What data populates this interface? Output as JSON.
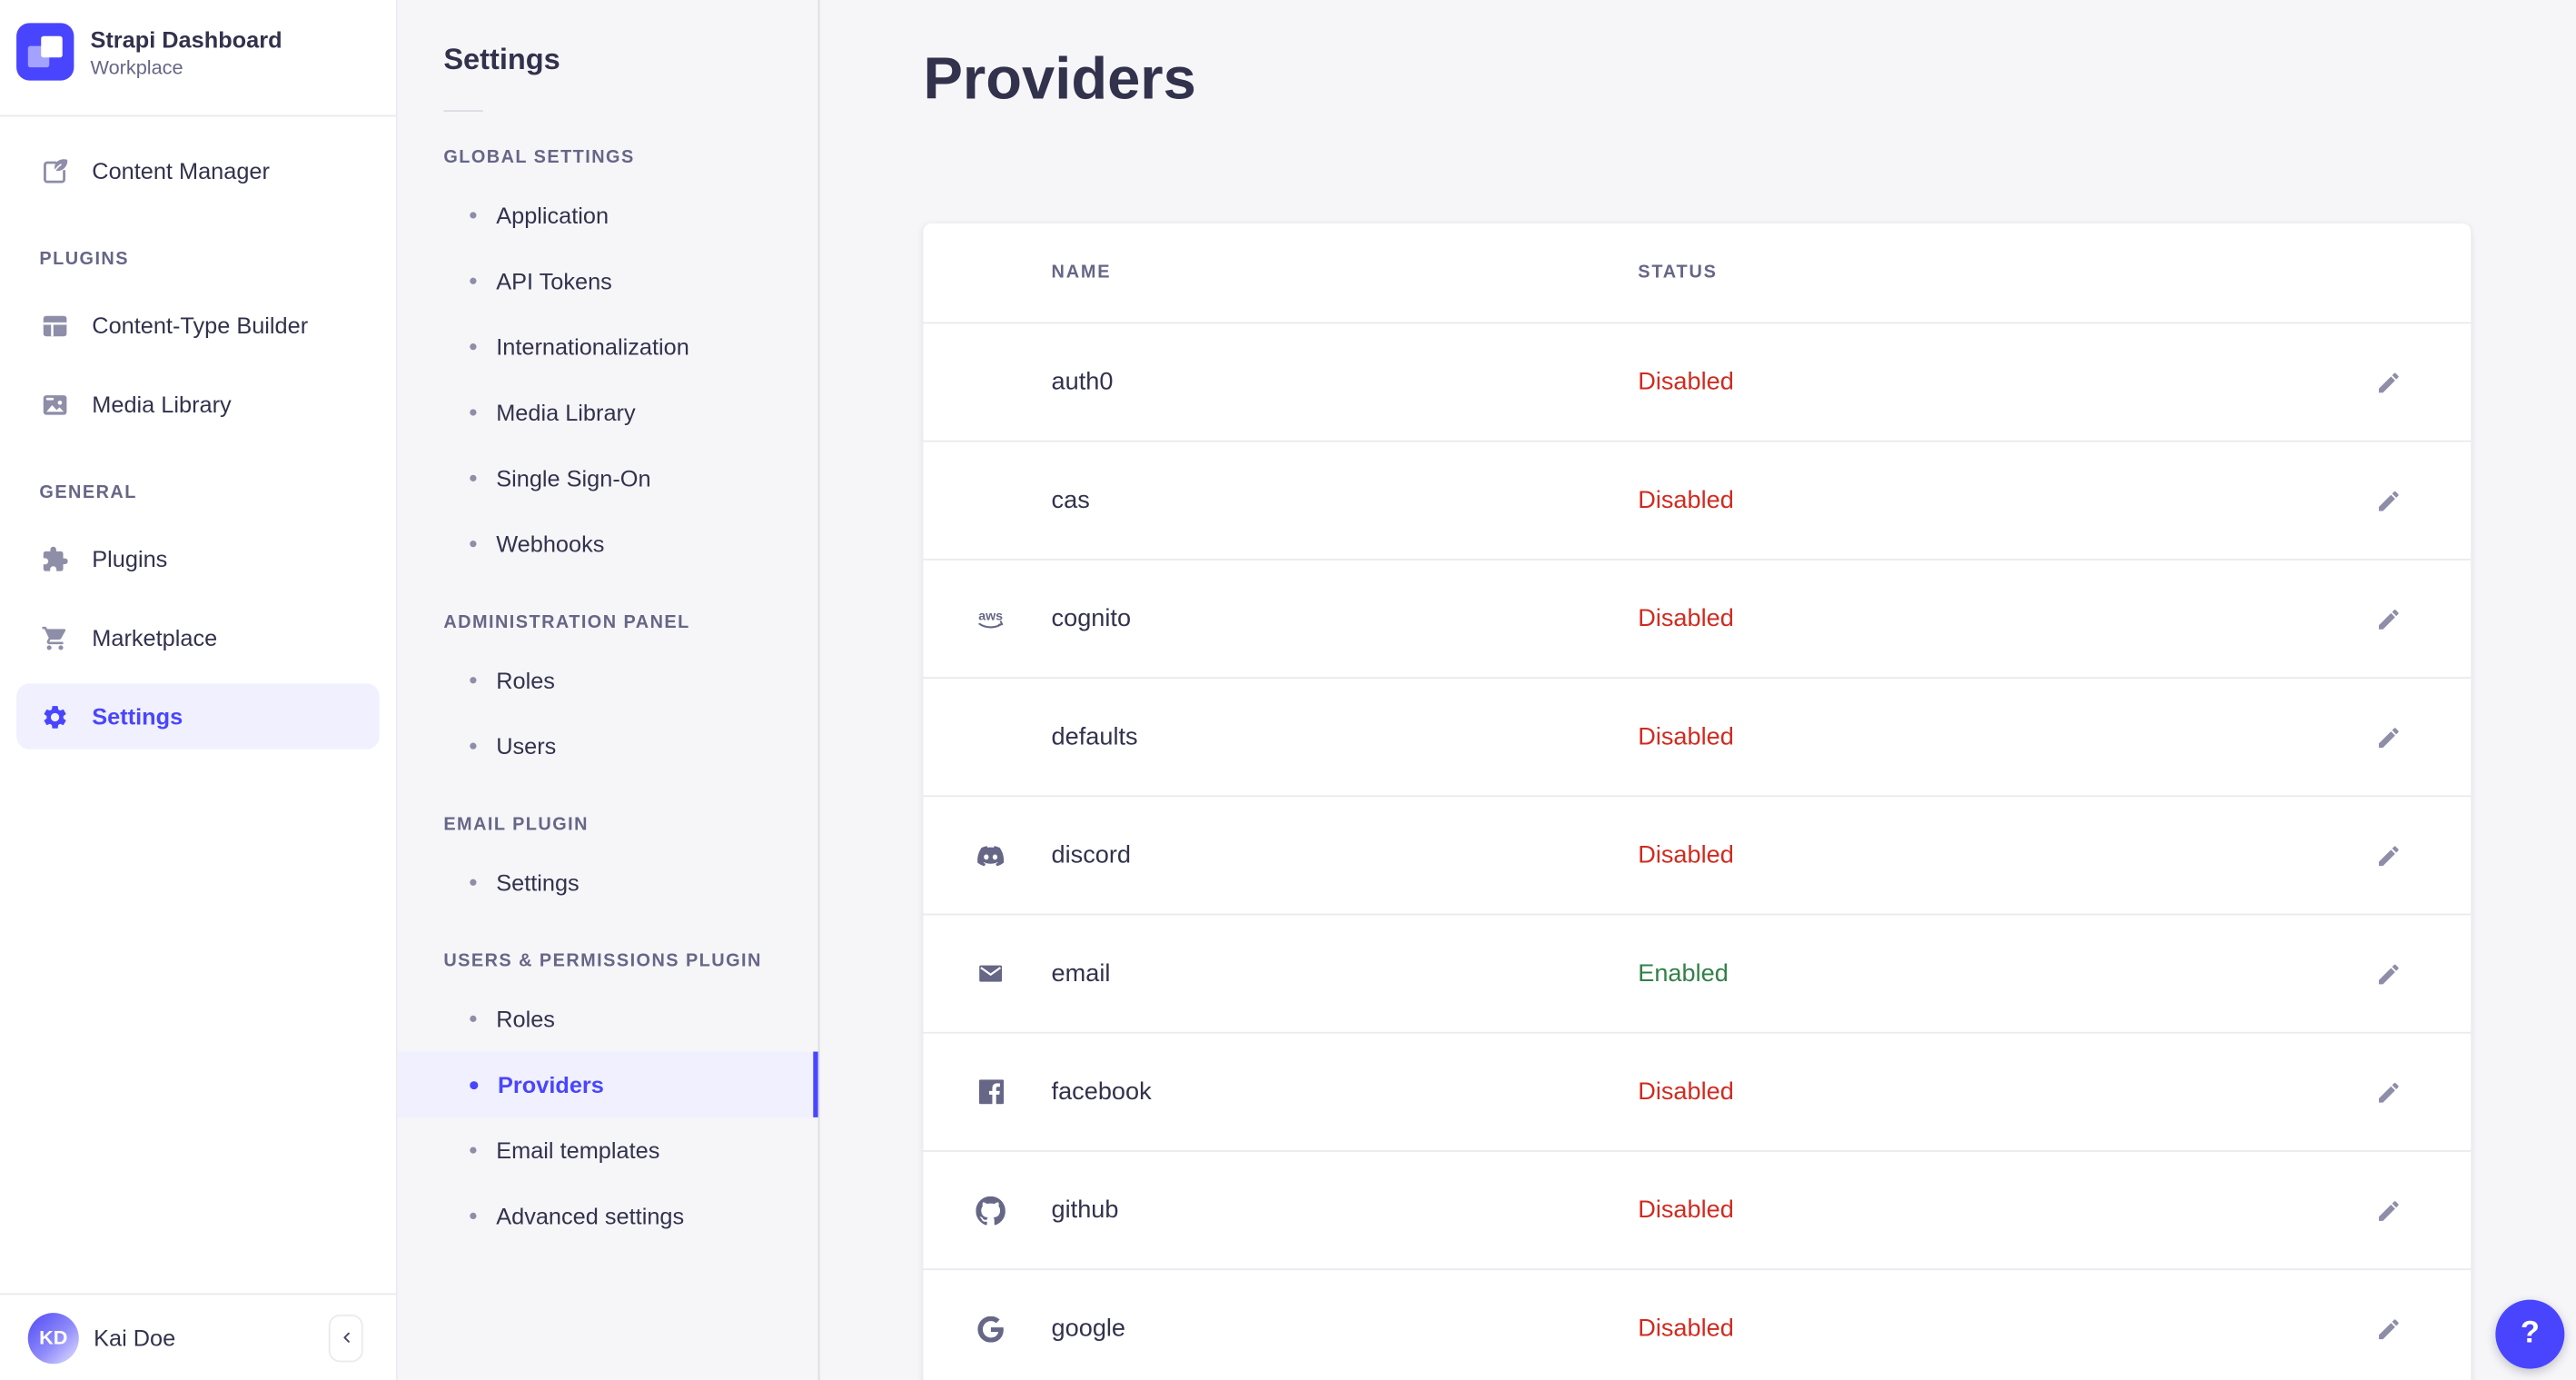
{
  "brand": {
    "title": "Strapi Dashboard",
    "subtitle": "Workplace"
  },
  "main_nav": {
    "content_manager": {
      "label": "Content Manager"
    },
    "sections": [
      {
        "label": "PLUGINS",
        "items": [
          {
            "label": "Content-Type Builder"
          },
          {
            "label": "Media Library"
          }
        ]
      },
      {
        "label": "GENERAL",
        "items": [
          {
            "label": "Plugins"
          },
          {
            "label": "Marketplace"
          },
          {
            "label": "Settings",
            "active": true
          }
        ]
      }
    ],
    "user": {
      "initials": "KD",
      "name": "Kai Doe"
    }
  },
  "subnav": {
    "title": "Settings",
    "sections": [
      {
        "label": "GLOBAL SETTINGS",
        "items": [
          {
            "label": "Application"
          },
          {
            "label": "API Tokens"
          },
          {
            "label": "Internationalization"
          },
          {
            "label": "Media Library"
          },
          {
            "label": "Single Sign-On"
          },
          {
            "label": "Webhooks"
          }
        ]
      },
      {
        "label": "ADMINISTRATION PANEL",
        "items": [
          {
            "label": "Roles"
          },
          {
            "label": "Users"
          }
        ]
      },
      {
        "label": "EMAIL PLUGIN",
        "items": [
          {
            "label": "Settings"
          }
        ]
      },
      {
        "label": "USERS & PERMISSIONS PLUGIN",
        "items": [
          {
            "label": "Roles"
          },
          {
            "label": "Providers",
            "active": true
          },
          {
            "label": "Email templates"
          },
          {
            "label": "Advanced settings"
          }
        ]
      }
    ]
  },
  "main": {
    "title": "Providers",
    "table": {
      "columns": [
        "NAME",
        "STATUS"
      ],
      "rows": [
        {
          "name": "auth0",
          "icon": null,
          "status": "Disabled"
        },
        {
          "name": "cas",
          "icon": null,
          "status": "Disabled"
        },
        {
          "name": "cognito",
          "icon": "aws-icon",
          "status": "Disabled"
        },
        {
          "name": "defaults",
          "icon": null,
          "status": "Disabled"
        },
        {
          "name": "discord",
          "icon": "discord-icon",
          "status": "Disabled"
        },
        {
          "name": "email",
          "icon": "email-icon",
          "status": "Enabled"
        },
        {
          "name": "facebook",
          "icon": "facebook-icon",
          "status": "Disabled"
        },
        {
          "name": "github",
          "icon": "github-icon",
          "status": "Disabled"
        },
        {
          "name": "google",
          "icon": "google-icon",
          "status": "Disabled"
        }
      ]
    }
  },
  "help": {
    "label": "?"
  },
  "colors": {
    "primary": "#4945FF",
    "primary_bg": "#F0F0FF",
    "text": "#32324D",
    "text_secondary": "#666687",
    "icon_muted": "#8E8EA9",
    "border": "#EAEAEF",
    "subnav_border": "#DCDCE4",
    "bg": "#F6F6F9",
    "card": "#FFFFFF",
    "disabled": "#D02B20",
    "enabled": "#328048"
  }
}
